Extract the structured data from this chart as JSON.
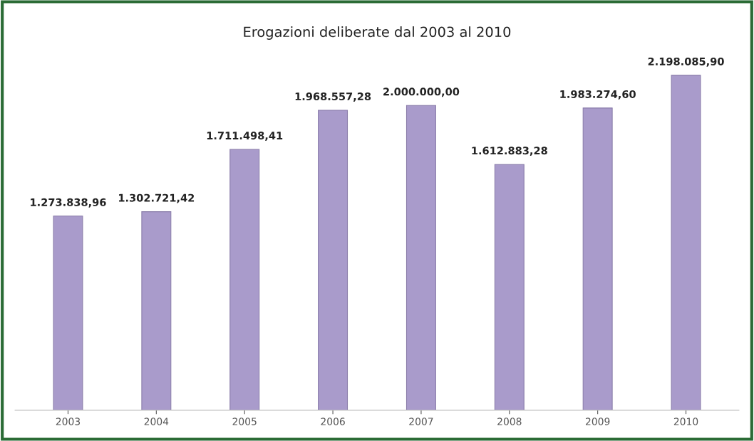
{
  "chart_data": {
    "type": "bar",
    "title": "Erogazioni deliberate dal 2003 al 2010",
    "categories": [
      "2003",
      "2004",
      "2005",
      "2006",
      "2007",
      "2008",
      "2009",
      "2010"
    ],
    "values": [
      1273838.96,
      1302721.42,
      1711498.41,
      1968557.28,
      2000000.0,
      1612883.28,
      1983274.6,
      2198085.9
    ],
    "value_labels": [
      "1.273.838,96",
      "1.302.721,42",
      "1.711.498,41",
      "1.968.557,28",
      "2.000.000,00",
      "1.612.883,28",
      "1.983.274,60",
      "2.198.085,90"
    ],
    "color": "#a99bcb",
    "grid": false,
    "legend": false
  }
}
